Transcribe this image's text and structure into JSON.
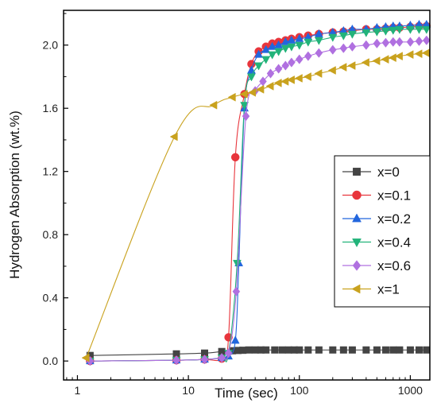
{
  "chart_data": {
    "type": "line",
    "title": "",
    "xlabel": "Time (sec)",
    "ylabel": "Hydrogen Absorption (wt.%)",
    "xscale": "log",
    "xlim": [
      0.75,
      1500
    ],
    "ylim": [
      -0.12,
      2.22
    ],
    "xticks": [
      {
        "value": 1,
        "label": "1"
      },
      {
        "value": 10,
        "label": "10"
      },
      {
        "value": 100,
        "label": "100"
      },
      {
        "value": 1000,
        "label": "1000"
      }
    ],
    "yticks": [
      {
        "value": 0.0,
        "label": "0.0"
      },
      {
        "value": 0.4,
        "label": "0.4"
      },
      {
        "value": 0.8,
        "label": "0.8"
      },
      {
        "value": 1.2,
        "label": "1.2"
      },
      {
        "value": 1.6,
        "label": "1.6"
      },
      {
        "value": 2.0,
        "label": "2.0"
      }
    ],
    "grid": false,
    "legend_position": "lower-right",
    "series": [
      {
        "name": "x=0",
        "color": "#444444",
        "marker": "square",
        "x": [
          1.3,
          7.8,
          14,
          20,
          25,
          28,
          31,
          35,
          40,
          45,
          50,
          60,
          70,
          80,
          90,
          100,
          120,
          150,
          200,
          250,
          300,
          400,
          500,
          600,
          700,
          800,
          1000,
          1200,
          1400
        ],
        "y": [
          0.035,
          0.045,
          0.05,
          0.06,
          0.065,
          0.067,
          0.068,
          0.07,
          0.07,
          0.07,
          0.07,
          0.07,
          0.07,
          0.07,
          0.07,
          0.07,
          0.07,
          0.07,
          0.07,
          0.07,
          0.07,
          0.07,
          0.07,
          0.07,
          0.07,
          0.07,
          0.07,
          0.07,
          0.07
        ]
      },
      {
        "name": "x=0.1",
        "color": "#e8353c",
        "marker": "circle",
        "x": [
          1.3,
          7.8,
          14,
          20,
          23,
          26.5,
          32,
          37,
          43,
          50,
          57,
          65,
          75,
          85,
          100,
          120,
          150,
          200,
          250,
          300,
          400,
          500,
          600,
          700,
          800,
          1000,
          1200,
          1400
        ],
        "y": [
          0.0,
          0.005,
          0.01,
          0.015,
          0.15,
          1.29,
          1.69,
          1.88,
          1.96,
          1.99,
          2.01,
          2.02,
          2.03,
          2.04,
          2.05,
          2.06,
          2.07,
          2.08,
          2.085,
          2.09,
          2.1,
          2.1,
          2.105,
          2.11,
          2.11,
          2.115,
          2.12,
          2.12
        ]
      },
      {
        "name": "x=0.2",
        "color": "#2266dd",
        "marker": "triangle-up",
        "x": [
          1.3,
          7.8,
          14,
          20,
          23,
          26.5,
          28.5,
          32,
          37,
          43,
          50,
          57,
          65,
          75,
          85,
          100,
          120,
          150,
          200,
          250,
          300,
          400,
          500,
          600,
          700,
          800,
          1000,
          1200,
          1400
        ],
        "y": [
          0.0,
          0.005,
          0.01,
          0.02,
          0.03,
          0.13,
          0.62,
          1.6,
          1.84,
          1.94,
          1.97,
          1.99,
          2.0,
          2.02,
          2.03,
          2.04,
          2.05,
          2.07,
          2.08,
          2.09,
          2.1,
          2.1,
          2.11,
          2.115,
          2.12,
          2.12,
          2.125,
          2.13,
          2.13
        ]
      },
      {
        "name": "x=0.4",
        "color": "#22b37a",
        "marker": "triangle-down",
        "x": [
          1.3,
          7.8,
          14,
          20,
          23,
          27.5,
          32,
          37,
          43,
          50,
          57,
          65,
          75,
          85,
          100,
          120,
          150,
          200,
          250,
          300,
          400,
          500,
          600,
          700,
          800,
          1000,
          1200,
          1400
        ],
        "y": [
          0.0,
          0.005,
          0.01,
          0.02,
          0.05,
          0.62,
          1.62,
          1.8,
          1.87,
          1.91,
          1.94,
          1.96,
          1.98,
          1.99,
          2.0,
          2.02,
          2.03,
          2.05,
          2.06,
          2.07,
          2.08,
          2.085,
          2.09,
          2.095,
          2.1,
          2.1,
          2.1,
          2.1
        ]
      },
      {
        "name": "x=0.6",
        "color": "#b070e0",
        "marker": "diamond",
        "x": [
          1.3,
          7.8,
          14,
          20,
          23,
          27,
          33,
          40,
          47,
          55,
          65,
          75,
          85,
          100,
          120,
          150,
          200,
          250,
          300,
          400,
          500,
          600,
          700,
          800,
          1000,
          1200,
          1400
        ],
        "y": [
          0.0,
          0.005,
          0.01,
          0.02,
          0.05,
          0.44,
          1.55,
          1.71,
          1.77,
          1.82,
          1.85,
          1.87,
          1.89,
          1.91,
          1.93,
          1.95,
          1.97,
          1.98,
          1.99,
          2.0,
          2.01,
          2.015,
          2.02,
          2.02,
          2.02,
          2.025,
          2.03
        ]
      },
      {
        "name": "x=1",
        "color": "#c9a21e",
        "marker": "triangle-left",
        "x": [
          1.2,
          7.5,
          17,
          25,
          32,
          38,
          45,
          55,
          65,
          75,
          85,
          100,
          120,
          150,
          200,
          250,
          300,
          400,
          500,
          600,
          700,
          800,
          1000,
          1200,
          1400
        ],
        "y": [
          0.02,
          1.42,
          1.62,
          1.67,
          1.69,
          1.7,
          1.72,
          1.74,
          1.76,
          1.77,
          1.78,
          1.79,
          1.8,
          1.82,
          1.84,
          1.86,
          1.87,
          1.89,
          1.9,
          1.91,
          1.92,
          1.93,
          1.94,
          1.945,
          1.95
        ]
      }
    ]
  }
}
